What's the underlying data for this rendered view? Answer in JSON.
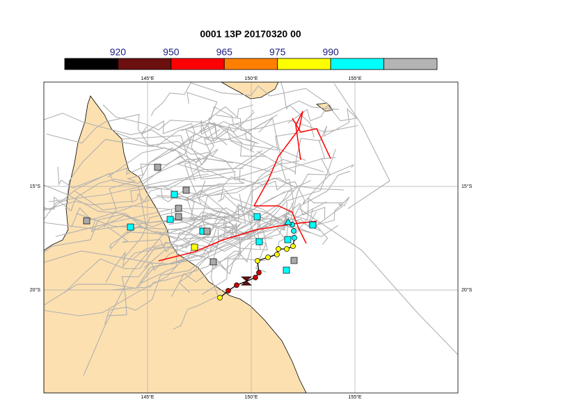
{
  "title": "0001 13P 20170320 00",
  "colorbar": {
    "labels": [
      920,
      950,
      965,
      975,
      990
    ],
    "colors": [
      "#000000",
      "#6b0f0f",
      "#ff0000",
      "#ff8000",
      "#ffff00",
      "#00ffff",
      "#b4b4b4"
    ]
  },
  "axes": {
    "top": [
      "145°E",
      "150°E",
      "155°E"
    ],
    "bottom": [
      "145°E",
      "150°E",
      "155°E"
    ],
    "left": [
      "15°S",
      "20°S"
    ],
    "right": [
      "15°S",
      "20°S"
    ]
  }
}
